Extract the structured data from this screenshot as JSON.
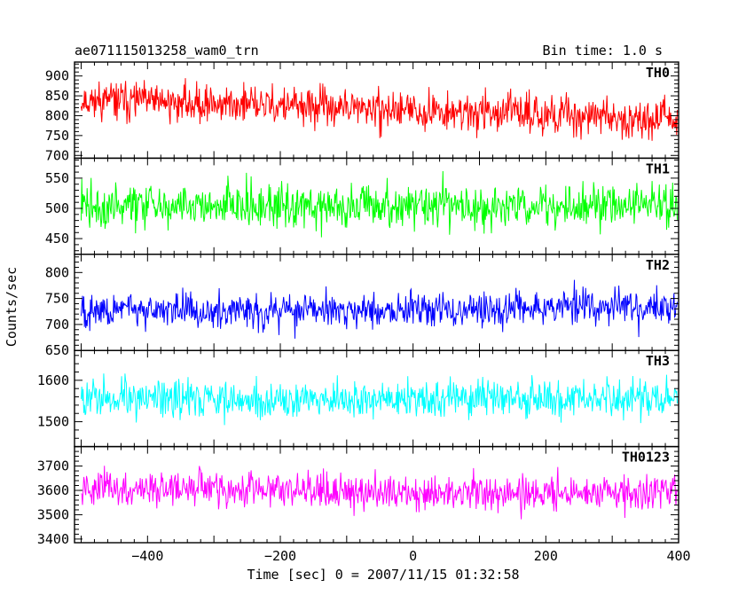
{
  "header": {
    "title": "ae071115013258_wam0_trn",
    "bin_time": "Bin time: 1.0 s"
  },
  "chart_data": {
    "type": "line",
    "xlabel": "Time [sec] 0 = 2007/11/15 01:32:58",
    "ylabel": "Counts/sec",
    "xlim": [
      -510,
      400
    ],
    "x_ticks": [
      -400,
      -200,
      0,
      200,
      400
    ],
    "x_tick_labels": [
      "−400",
      "−200",
      "0",
      "200",
      "400"
    ],
    "bin_seconds": 1.0,
    "x_range_data": [
      -500,
      398
    ],
    "grid": false,
    "panels": [
      {
        "name": "TH0",
        "color": "#ff0000",
        "ylim": [
          693,
          935
        ],
        "y_ticks": [
          700,
          750,
          800,
          850,
          900
        ],
        "trend": [
          [
            -500,
            840
          ],
          [
            -250,
            828
          ],
          [
            0,
            812
          ],
          [
            200,
            805
          ],
          [
            398,
            790
          ]
        ],
        "scatter": 40,
        "seed": 11
      },
      {
        "name": "TH1",
        "color": "#00ff00",
        "ylim": [
          424,
          583
        ],
        "y_ticks": [
          450,
          500,
          550
        ],
        "trend": [
          [
            -500,
            505
          ],
          [
            398,
            505
          ]
        ],
        "scatter": 30,
        "seed": 22
      },
      {
        "name": "TH2",
        "color": "#0000ff",
        "ylim": [
          650,
          835
        ],
        "y_ticks": [
          650,
          700,
          750,
          800
        ],
        "trend": [
          [
            -500,
            728
          ],
          [
            -100,
            725
          ],
          [
            398,
            735
          ]
        ],
        "scatter": 28,
        "seed": 33
      },
      {
        "name": "TH3",
        "color": "#00ffff",
        "ylim": [
          1440,
          1672
        ],
        "y_ticks": [
          1500,
          1600
        ],
        "trend": [
          [
            -500,
            1555
          ],
          [
            398,
            1555
          ]
        ],
        "scatter": 40,
        "seed": 44
      },
      {
        "name": "TH0123",
        "color": "#ff00ff",
        "ylim": [
          3385,
          3780
        ],
        "y_ticks": [
          3400,
          3500,
          3600,
          3700
        ],
        "trend": [
          [
            -500,
            3612
          ],
          [
            -250,
            3600
          ],
          [
            0,
            3590
          ],
          [
            398,
            3595
          ]
        ],
        "scatter": 60,
        "seed": 55
      }
    ]
  }
}
